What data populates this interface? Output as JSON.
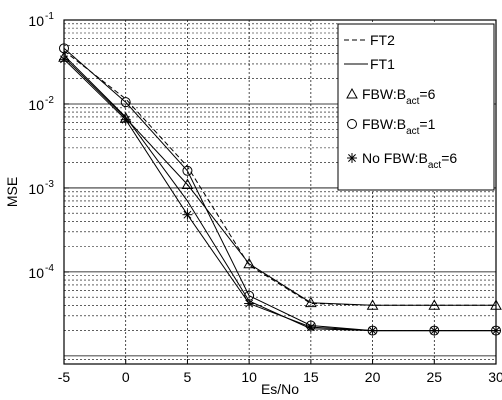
{
  "chart_data": {
    "type": "line",
    "title": "",
    "xlabel": "Es/No",
    "ylabel": "MSE",
    "yscale": "log",
    "xlim": [
      -5,
      30
    ],
    "ylim": [
      8e-06,
      0.1
    ],
    "grid": "major solid, minor dotted",
    "legend_position": "top-right",
    "x": [
      -5,
      0,
      5,
      10,
      15,
      20,
      25,
      30
    ],
    "x_ticks": [
      "-5",
      "0",
      "5",
      "10",
      "15",
      "20",
      "25",
      "30"
    ],
    "y_ticks": [
      {
        "value": 0.1,
        "base": "10",
        "exp": "-1"
      },
      {
        "value": 0.01,
        "base": "10",
        "exp": "-2"
      },
      {
        "value": 0.001,
        "base": "10",
        "exp": "-3"
      },
      {
        "value": 0.0001,
        "base": "10",
        "exp": "-4"
      }
    ],
    "series": [
      {
        "name": "FT2",
        "line": "dashed",
        "marker": "none",
        "values": [
          0.043,
          0.0115,
          0.0018,
          0.00012,
          4.2e-05,
          4e-05,
          4e-05,
          4e-05
        ]
      },
      {
        "name": "FT1",
        "line": "solid",
        "marker": "none",
        "values": [
          0.038,
          0.007,
          0.0007,
          4.5e-05,
          2.1e-05,
          2e-05,
          2e-05,
          2e-05
        ]
      },
      {
        "name": "FBW:B_act=6",
        "legend_text": {
          "pre": "FBW:B",
          "sub": "act",
          "post": "=6"
        },
        "line": "solid",
        "marker": "triangle",
        "values": [
          0.036,
          0.0068,
          0.0011,
          0.000125,
          4.3e-05,
          4e-05,
          4e-05,
          4e-05
        ]
      },
      {
        "name": "FBW:B_act=1",
        "legend_text": {
          "pre": "FBW:B",
          "sub": "act",
          "post": "=1"
        },
        "line": "solid",
        "marker": "circle",
        "values": [
          0.046,
          0.0105,
          0.0016,
          5.2e-05,
          2.3e-05,
          2e-05,
          2e-05,
          2e-05
        ]
      },
      {
        "name": "No FBW:B_act=6",
        "legend_text": {
          "pre": "No FBW:B",
          "sub": "act",
          "post": "=6"
        },
        "line": "solid",
        "marker": "star",
        "values": [
          0.034,
          0.0065,
          0.00048,
          4.2e-05,
          2.2e-05,
          2e-05,
          2e-05,
          2e-05
        ]
      }
    ]
  }
}
